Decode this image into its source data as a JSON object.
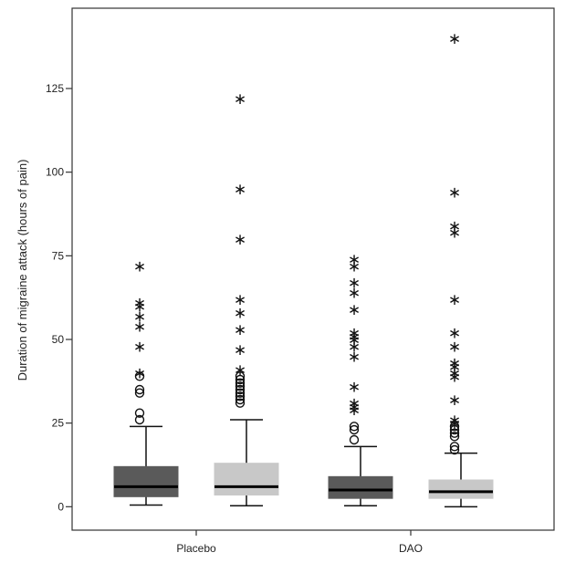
{
  "chart_data": {
    "type": "boxplot",
    "ylabel": "Duration of migraine attack (hours of pain)",
    "xlabel": "",
    "ylim": [
      -7,
      149
    ],
    "yticks": [
      0,
      25,
      50,
      75,
      100,
      125
    ],
    "categories": [
      "Placebo",
      "DAO"
    ],
    "colors": {
      "dark": "#5a5a5a",
      "light": "#c8c8c8"
    },
    "boxes": [
      {
        "category": "Placebo",
        "shade": "dark",
        "min": 0.5,
        "q1": 3,
        "median": 6,
        "q3": 12,
        "max": 24,
        "outliers": [
          39,
          35,
          34,
          28,
          26
        ],
        "extremes": [
          72,
          61,
          60,
          57,
          54,
          48,
          40
        ]
      },
      {
        "category": "Placebo",
        "shade": "light",
        "min": 0.3,
        "q1": 3.5,
        "median": 6,
        "q3": 13,
        "max": 26,
        "outliers": [
          39,
          38,
          37,
          36,
          35,
          34,
          33,
          32,
          31
        ],
        "extremes": [
          122,
          95,
          80,
          62,
          58,
          53,
          47,
          41
        ]
      },
      {
        "category": "DAO",
        "shade": "dark",
        "min": 0.3,
        "q1": 2.5,
        "median": 5,
        "q3": 9,
        "max": 18,
        "outliers": [
          24,
          23,
          20
        ],
        "extremes": [
          74,
          72,
          67,
          64,
          59,
          52,
          51,
          50,
          48,
          45,
          36,
          31,
          30,
          29
        ]
      },
      {
        "category": "DAO",
        "shade": "light",
        "min": 0,
        "q1": 2.5,
        "median": 4.5,
        "q3": 8,
        "max": 16,
        "outliers": [
          24,
          23,
          22,
          21,
          18,
          17
        ],
        "extremes": [
          140,
          94,
          84,
          82,
          62,
          52,
          48,
          43,
          42,
          40,
          39,
          32,
          26,
          25
        ]
      }
    ]
  }
}
